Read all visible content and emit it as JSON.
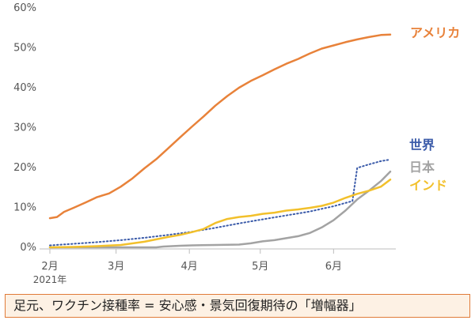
{
  "chart_data": {
    "type": "line",
    "y_ticks": [
      "0%",
      "10%",
      "20%",
      "30%",
      "40%",
      "50%",
      "60%"
    ],
    "ylim": [
      0,
      60
    ],
    "x_ticks": [
      "2月",
      "3月",
      "4月",
      "5月",
      "6月"
    ],
    "x_tick_days": [
      0,
      28,
      59,
      89,
      120
    ],
    "xlim_days": [
      0,
      145
    ],
    "year_label": "2021年",
    "grid": false,
    "series": [
      {
        "name": "アメリカ",
        "color": "#e8823a",
        "style": "solid",
        "points": [
          [
            0,
            7.3
          ],
          [
            3,
            7.6
          ],
          [
            6,
            8.9
          ],
          [
            10,
            9.9
          ],
          [
            15,
            11.2
          ],
          [
            20,
            12.6
          ],
          [
            25,
            13.5
          ],
          [
            30,
            15.2
          ],
          [
            35,
            17.3
          ],
          [
            40,
            19.8
          ],
          [
            45,
            22.1
          ],
          [
            50,
            24.8
          ],
          [
            55,
            27.5
          ],
          [
            60,
            30.2
          ],
          [
            65,
            32.8
          ],
          [
            70,
            35.5
          ],
          [
            75,
            37.9
          ],
          [
            80,
            40.0
          ],
          [
            85,
            41.7
          ],
          [
            90,
            43.1
          ],
          [
            95,
            44.6
          ],
          [
            100,
            46.0
          ],
          [
            105,
            47.2
          ],
          [
            110,
            48.6
          ],
          [
            115,
            49.8
          ],
          [
            120,
            50.6
          ],
          [
            125,
            51.4
          ],
          [
            130,
            52.1
          ],
          [
            135,
            52.7
          ],
          [
            140,
            53.2
          ],
          [
            144,
            53.3
          ]
        ]
      },
      {
        "name": "世界",
        "color": "#3b5ba9",
        "style": "dotted",
        "points": [
          [
            0,
            0.5
          ],
          [
            10,
            0.9
          ],
          [
            20,
            1.3
          ],
          [
            30,
            1.8
          ],
          [
            40,
            2.4
          ],
          [
            50,
            3.1
          ],
          [
            60,
            3.9
          ],
          [
            70,
            4.9
          ],
          [
            80,
            6.0
          ],
          [
            90,
            7.0
          ],
          [
            100,
            8.0
          ],
          [
            110,
            9.0
          ],
          [
            120,
            10.3
          ],
          [
            128,
            11.6
          ],
          [
            130,
            19.9
          ],
          [
            135,
            20.8
          ],
          [
            140,
            21.6
          ],
          [
            144,
            22.0
          ]
        ]
      },
      {
        "name": "日本",
        "color": "#a3a3a3",
        "style": "solid",
        "points": [
          [
            0,
            0
          ],
          [
            45,
            0
          ],
          [
            48,
            0.2
          ],
          [
            55,
            0.4
          ],
          [
            60,
            0.5
          ],
          [
            70,
            0.6
          ],
          [
            80,
            0.7
          ],
          [
            85,
            1.0
          ],
          [
            90,
            1.5
          ],
          [
            95,
            1.8
          ],
          [
            100,
            2.3
          ],
          [
            105,
            2.8
          ],
          [
            110,
            3.6
          ],
          [
            115,
            5.0
          ],
          [
            120,
            6.8
          ],
          [
            125,
            9.2
          ],
          [
            130,
            12.0
          ],
          [
            135,
            14.2
          ],
          [
            140,
            16.6
          ],
          [
            144,
            19.0
          ]
        ]
      },
      {
        "name": "インド",
        "color": "#f2c02b",
        "style": "solid",
        "points": [
          [
            0,
            0
          ],
          [
            10,
            0.1
          ],
          [
            20,
            0.3
          ],
          [
            30,
            0.6
          ],
          [
            40,
            1.4
          ],
          [
            50,
            2.6
          ],
          [
            55,
            3.1
          ],
          [
            60,
            3.8
          ],
          [
            65,
            4.6
          ],
          [
            70,
            6.1
          ],
          [
            75,
            7.1
          ],
          [
            80,
            7.6
          ],
          [
            85,
            7.9
          ],
          [
            90,
            8.4
          ],
          [
            95,
            8.7
          ],
          [
            100,
            9.2
          ],
          [
            105,
            9.5
          ],
          [
            110,
            9.9
          ],
          [
            115,
            10.4
          ],
          [
            120,
            11.2
          ],
          [
            125,
            12.4
          ],
          [
            130,
            13.4
          ],
          [
            135,
            14.2
          ],
          [
            140,
            15.2
          ],
          [
            144,
            17.0
          ]
        ]
      }
    ],
    "series_labels": [
      {
        "text": "アメリカ",
        "color": "#e8823a"
      },
      {
        "text": "世界",
        "color": "#3b5ba9"
      },
      {
        "text": "日本",
        "color": "#a3a3a3"
      },
      {
        "text": "インド",
        "color": "#f2c02b"
      }
    ]
  },
  "caption": "足元、ワクチン接種率 = 安心感・景気回復期待の「増幅器」"
}
